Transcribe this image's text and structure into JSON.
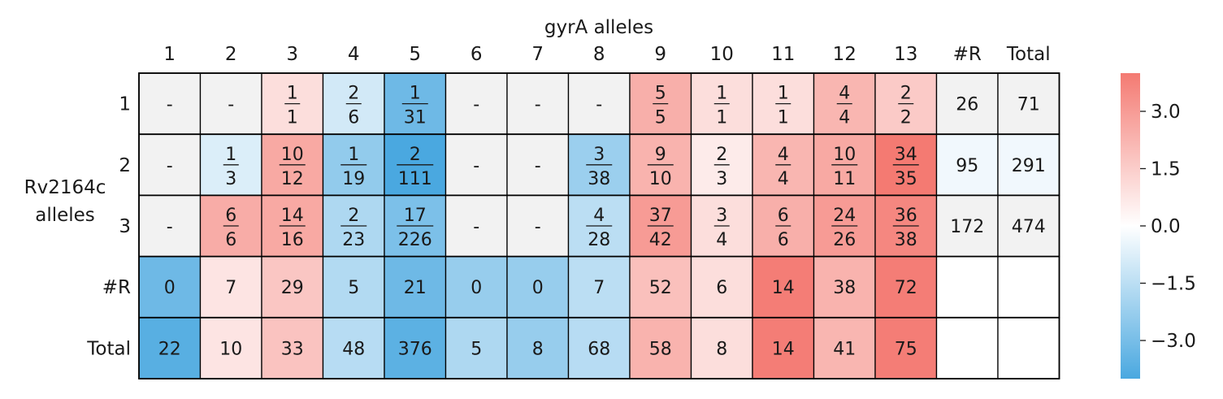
{
  "chart_data": {
    "type": "heatmap",
    "title": "",
    "xlabel": "gyrA alleles",
    "ylabel_lines": [
      "Rv2164c",
      "alleles"
    ],
    "columns": [
      "1",
      "2",
      "3",
      "4",
      "5",
      "6",
      "7",
      "8",
      "9",
      "10",
      "11",
      "12",
      "13",
      "#R",
      "Total"
    ],
    "rows": [
      "1",
      "2",
      "3",
      "#R",
      "Total"
    ],
    "cells": [
      [
        "-",
        "-",
        "1/1",
        "2/6",
        "1/31",
        "-",
        "-",
        "-",
        "5/5",
        "1/1",
        "1/1",
        "4/4",
        "2/2",
        "26",
        "71"
      ],
      [
        "-",
        "1/3",
        "10/12",
        "1/19",
        "2/111",
        "-",
        "-",
        "3/38",
        "9/10",
        "2/3",
        "4/4",
        "10/11",
        "34/35",
        "95",
        "291"
      ],
      [
        "-",
        "6/6",
        "14/16",
        "2/23",
        "17/226",
        "-",
        "-",
        "4/28",
        "37/42",
        "3/4",
        "6/6",
        "24/26",
        "36/38",
        "172",
        "474"
      ],
      [
        "0",
        "7",
        "29",
        "5",
        "21",
        "0",
        "0",
        "7",
        "52",
        "6",
        "14",
        "38",
        "72",
        "",
        ""
      ],
      [
        "22",
        "10",
        "33",
        "48",
        "376",
        "5",
        "8",
        "68",
        "58",
        "8",
        "14",
        "41",
        "75",
        "",
        ""
      ]
    ],
    "scores": [
      [
        null,
        null,
        1.0,
        -1.0,
        -3.2,
        null,
        null,
        null,
        2.4,
        1.0,
        1.0,
        2.2,
        1.6,
        null,
        null
      ],
      [
        null,
        -0.8,
        2.6,
        -2.4,
        -4.0,
        null,
        null,
        -2.2,
        2.3,
        0.6,
        2.2,
        2.6,
        4.0,
        -0.3,
        -0.3
      ],
      [
        null,
        2.5,
        2.6,
        -1.8,
        -2.9,
        null,
        null,
        -1.5,
        3.0,
        1.0,
        2.4,
        3.0,
        3.6,
        null,
        null
      ],
      [
        -3.2,
        0.8,
        1.7,
        -1.7,
        -3.2,
        -2.3,
        -2.3,
        -1.5,
        1.9,
        1.0,
        3.9,
        2.3,
        3.9,
        null,
        null
      ],
      [
        -3.7,
        0.8,
        1.8,
        -1.6,
        -3.6,
        -1.8,
        -2.3,
        -1.6,
        2.3,
        1.0,
        3.9,
        2.2,
        3.9,
        null,
        null
      ]
    ],
    "color_range": [
      -4.0,
      4.0
    ],
    "colorbar_ticks": [
      "3.0",
      "1.5",
      "0.0",
      "−1.5",
      "−3.0"
    ],
    "colorbar_tick_values": [
      3.0,
      1.5,
      0.0,
      -1.5,
      -3.0
    ],
    "colors": {
      "negative": "#4aa8e0",
      "zero": "#ffffff",
      "positive": "#f47a72",
      "na": "#f2f2f2",
      "blank": "#ffffff"
    }
  }
}
